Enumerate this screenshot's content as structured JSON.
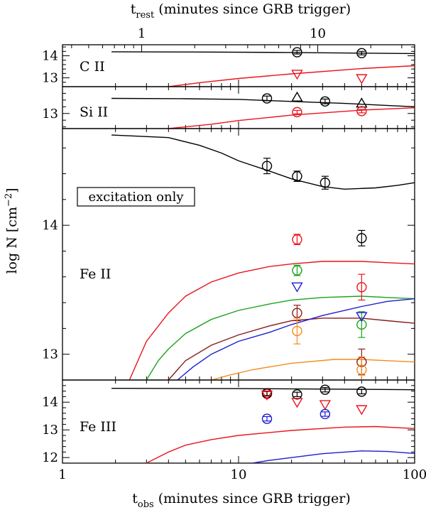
{
  "chart_data": {
    "type": "scatter",
    "x_scale": "log",
    "xlim": [
      1,
      100
    ],
    "top_axis": {
      "label_main": "t",
      "label_sub": "rest",
      "label_rest": " (minutes since GRB trigger)",
      "ticks": [
        {
          "value": 1,
          "label": "1"
        },
        {
          "value": 10,
          "label": "10"
        }
      ],
      "xlim": [
        0.355,
        35.5
      ],
      "scale": "log"
    },
    "bottom_axis": {
      "label_main": "t",
      "label_sub": "obs",
      "label_rest": " (minutes since GRB trigger)",
      "ticks": [
        {
          "value": 1,
          "label": "1"
        },
        {
          "value": 10,
          "label": "10"
        },
        {
          "value": 100,
          "label": "100"
        }
      ]
    },
    "ylabel": {
      "main": "log N  [cm",
      "sup": "−2",
      "end": "]"
    },
    "panels": [
      {
        "id": "cii",
        "label": "C II",
        "ylim": [
          12.6,
          14.5
        ],
        "yticks": [
          {
            "value": 13,
            "label": "13"
          },
          {
            "value": 14,
            "label": "14"
          }
        ],
        "curves": [
          {
            "color": "#000000",
            "points": [
              [
                1.9,
                14.18
              ],
              [
                5.5,
                14.17
              ],
              [
                20,
                14.15
              ],
              [
                50,
                14.12
              ],
              [
                100,
                14.1
              ]
            ]
          },
          {
            "color": "#e8141c",
            "points": [
              [
                4,
                12.6
              ],
              [
                6,
                12.78
              ],
              [
                10,
                12.97
              ],
              [
                20,
                13.18
              ],
              [
                50,
                13.42
              ],
              [
                100,
                13.55
              ]
            ]
          }
        ],
        "points": [
          {
            "x": 21.5,
            "y": 14.16,
            "err": 0.08,
            "marker": "circle",
            "color": "#000000"
          },
          {
            "x": 50,
            "y": 14.12,
            "err": 0.08,
            "marker": "circle",
            "color": "#000000"
          },
          {
            "x": 21.5,
            "y": 13.15,
            "err": 0,
            "marker": "triangle-down",
            "color": "#e8141c"
          },
          {
            "x": 50,
            "y": 12.95,
            "err": 0,
            "marker": "triangle-down",
            "color": "#e8141c"
          }
        ]
      },
      {
        "id": "siii",
        "label": "Si II",
        "ylim": [
          12.55,
          13.8
        ],
        "yticks": [
          {
            "value": 13,
            "label": "13"
          }
        ],
        "curves": [
          {
            "color": "#000000",
            "points": [
              [
                1.9,
                13.45
              ],
              [
                5,
                13.44
              ],
              [
                10,
                13.42
              ],
              [
                20,
                13.36
              ],
              [
                40,
                13.3
              ],
              [
                100,
                13.2
              ]
            ]
          },
          {
            "color": "#e8141c",
            "points": [
              [
                4,
                12.55
              ],
              [
                7,
                12.68
              ],
              [
                10,
                12.79
              ],
              [
                20,
                12.95
              ],
              [
                50,
                13.1
              ],
              [
                100,
                13.17
              ]
            ]
          }
        ],
        "points": [
          {
            "x": 14.5,
            "y": 13.45,
            "err": 0.07,
            "marker": "circle",
            "color": "#000000"
          },
          {
            "x": 31,
            "y": 13.36,
            "err": 0.07,
            "marker": "circle",
            "color": "#000000"
          },
          {
            "x": 21.5,
            "y": 13.5,
            "err": 0,
            "marker": "triangle-up",
            "color": "#000000"
          },
          {
            "x": 50,
            "y": 13.32,
            "err": 0,
            "marker": "triangle-up",
            "color": "#000000"
          },
          {
            "x": 21.5,
            "y": 13.04,
            "err": 0.05,
            "marker": "circle",
            "color": "#e8141c"
          },
          {
            "x": 50,
            "y": 13.07,
            "err": 0.05,
            "marker": "circle",
            "color": "#e8141c"
          }
        ]
      },
      {
        "id": "feii",
        "label": "Fe II",
        "annotation": "excitation only",
        "ylim": [
          12.8,
          14.75
        ],
        "yticks": [
          {
            "value": 13,
            "label": "13"
          },
          {
            "value": 14,
            "label": "14"
          }
        ],
        "curves": [
          {
            "color": "#000000",
            "points": [
              [
                1.9,
                14.7
              ],
              [
                4,
                14.68
              ],
              [
                6,
                14.62
              ],
              [
                8,
                14.56
              ],
              [
                10,
                14.5
              ],
              [
                15,
                14.42
              ],
              [
                20,
                14.36
              ],
              [
                30,
                14.3
              ],
              [
                40,
                14.28
              ],
              [
                60,
                14.29
              ],
              [
                80,
                14.31
              ],
              [
                100,
                14.33
              ]
            ]
          },
          {
            "color": "#e8141c",
            "points": [
              [
                2.4,
                12.8
              ],
              [
                3,
                13.1
              ],
              [
                4,
                13.32
              ],
              [
                5,
                13.45
              ],
              [
                7,
                13.56
              ],
              [
                10,
                13.63
              ],
              [
                15,
                13.68
              ],
              [
                20,
                13.7
              ],
              [
                30,
                13.72
              ],
              [
                50,
                13.72
              ],
              [
                70,
                13.71
              ],
              [
                100,
                13.7
              ]
            ]
          },
          {
            "color": "#1aa31a",
            "points": [
              [
                3,
                12.8
              ],
              [
                3.5,
                12.95
              ],
              [
                4,
                13.04
              ],
              [
                5,
                13.16
              ],
              [
                7,
                13.27
              ],
              [
                10,
                13.34
              ],
              [
                15,
                13.39
              ],
              [
                20,
                13.42
              ],
              [
                30,
                13.44
              ],
              [
                50,
                13.45
              ],
              [
                70,
                13.44
              ],
              [
                100,
                13.43
              ]
            ]
          },
          {
            "color": "#8b1a1a",
            "points": [
              [
                4,
                12.8
              ],
              [
                4.5,
                12.88
              ],
              [
                5,
                12.95
              ],
              [
                7,
                13.07
              ],
              [
                10,
                13.15
              ],
              [
                15,
                13.22
              ],
              [
                20,
                13.26
              ],
              [
                30,
                13.28
              ],
              [
                50,
                13.28
              ],
              [
                70,
                13.26
              ],
              [
                100,
                13.24
              ]
            ]
          },
          {
            "color": "#1c1ccf",
            "points": [
              [
                4.5,
                12.8
              ],
              [
                5.5,
                12.9
              ],
              [
                7,
                13.0
              ],
              [
                10,
                13.1
              ],
              [
                15,
                13.17
              ],
              [
                20,
                13.23
              ],
              [
                30,
                13.3
              ],
              [
                50,
                13.37
              ],
              [
                70,
                13.41
              ],
              [
                100,
                13.43
              ]
            ]
          },
          {
            "color": "#f28c1c",
            "points": [
              [
                7,
                12.8
              ],
              [
                9,
                12.84
              ],
              [
                12,
                12.88
              ],
              [
                20,
                12.93
              ],
              [
                35,
                12.96
              ],
              [
                50,
                12.96
              ],
              [
                70,
                12.95
              ],
              [
                100,
                12.94
              ]
            ]
          }
        ],
        "points": [
          {
            "x": 14.5,
            "y": 14.46,
            "err": 0.06,
            "marker": "circle",
            "color": "#000000"
          },
          {
            "x": 21.5,
            "y": 14.38,
            "err": 0.04,
            "marker": "circle",
            "color": "#000000"
          },
          {
            "x": 31,
            "y": 14.33,
            "err": 0.05,
            "marker": "circle",
            "color": "#000000"
          },
          {
            "x": 50,
            "y": 13.9,
            "err": 0.06,
            "marker": "circle",
            "color": "#000000"
          },
          {
            "x": 21.5,
            "y": 13.89,
            "err": 0.04,
            "marker": "circle",
            "color": "#e8141c"
          },
          {
            "x": 50,
            "y": 13.52,
            "err": 0.1,
            "marker": "circle",
            "color": "#e8141c"
          },
          {
            "x": 21.5,
            "y": 13.65,
            "err": 0.04,
            "marker": "circle",
            "color": "#1aa31a"
          },
          {
            "x": 50,
            "y": 13.23,
            "err": 0.1,
            "marker": "circle",
            "color": "#1aa31a"
          },
          {
            "x": 21.5,
            "y": 13.52,
            "err": 0,
            "marker": "triangle-down",
            "color": "#1c1ccf"
          },
          {
            "x": 50,
            "y": 13.29,
            "err": 0,
            "marker": "triangle-down",
            "color": "#1c1ccf"
          },
          {
            "x": 21.5,
            "y": 13.32,
            "err": 0.06,
            "marker": "circle",
            "color": "#8b1a1a"
          },
          {
            "x": 50,
            "y": 12.94,
            "err": 0.1,
            "marker": "circle",
            "color": "#8b1a1a"
          },
          {
            "x": 21.5,
            "y": 13.18,
            "err": 0.1,
            "marker": "circle",
            "color": "#f28c1c"
          },
          {
            "x": 50,
            "y": 12.88,
            "err": 0.1,
            "marker": "circle",
            "color": "#f28c1c"
          }
        ]
      },
      {
        "id": "feiii",
        "label": "Fe III",
        "ylim": [
          11.8,
          14.8
        ],
        "yticks": [
          {
            "value": 12,
            "label": "12"
          },
          {
            "value": 13,
            "label": "13"
          },
          {
            "value": 14,
            "label": "14"
          }
        ],
        "curves": [
          {
            "color": "#000000",
            "points": [
              [
                1.9,
                14.5
              ],
              [
                10,
                14.49
              ],
              [
                40,
                14.47
              ],
              [
                100,
                14.45
              ]
            ]
          },
          {
            "color": "#e8141c",
            "points": [
              [
                3,
                11.8
              ],
              [
                4,
                12.2
              ],
              [
                5,
                12.45
              ],
              [
                7,
                12.65
              ],
              [
                10,
                12.8
              ],
              [
                20,
                12.98
              ],
              [
                40,
                13.1
              ],
              [
                60,
                13.12
              ],
              [
                100,
                13.05
              ]
            ]
          },
          {
            "color": "#1c1ccf",
            "points": [
              [
                12,
                11.8
              ],
              [
                15,
                11.9
              ],
              [
                20,
                12.0
              ],
              [
                30,
                12.14
              ],
              [
                50,
                12.24
              ],
              [
                70,
                12.22
              ],
              [
                100,
                12.15
              ]
            ]
          }
        ],
        "points": [
          {
            "x": 14.5,
            "y": 14.3,
            "err": 0.08,
            "marker": "circle",
            "color": "#e8141c"
          },
          {
            "x": 14.5,
            "y": 14.32,
            "err": 0.08,
            "marker": "circle",
            "color": "#000000"
          },
          {
            "x": 21.5,
            "y": 14.28,
            "err": 0.08,
            "marker": "circle",
            "color": "#000000"
          },
          {
            "x": 31,
            "y": 14.45,
            "err": 0.08,
            "marker": "circle",
            "color": "#000000"
          },
          {
            "x": 50,
            "y": 14.38,
            "err": 0.08,
            "marker": "circle",
            "color": "#000000"
          },
          {
            "x": 14.5,
            "y": 14.25,
            "err": 0,
            "marker": "triangle-down",
            "color": "#e8141c"
          },
          {
            "x": 21.5,
            "y": 13.98,
            "err": 0,
            "marker": "triangle-down",
            "color": "#e8141c"
          },
          {
            "x": 31,
            "y": 13.9,
            "err": 0,
            "marker": "triangle-down",
            "color": "#e8141c"
          },
          {
            "x": 50,
            "y": 13.72,
            "err": 0,
            "marker": "triangle-down",
            "color": "#e8141c"
          },
          {
            "x": 14.5,
            "y": 13.4,
            "err": 0.08,
            "marker": "circle",
            "color": "#1c1ccf"
          },
          {
            "x": 31,
            "y": 13.57,
            "err": 0.08,
            "marker": "circle",
            "color": "#1c1ccf"
          }
        ]
      }
    ]
  }
}
